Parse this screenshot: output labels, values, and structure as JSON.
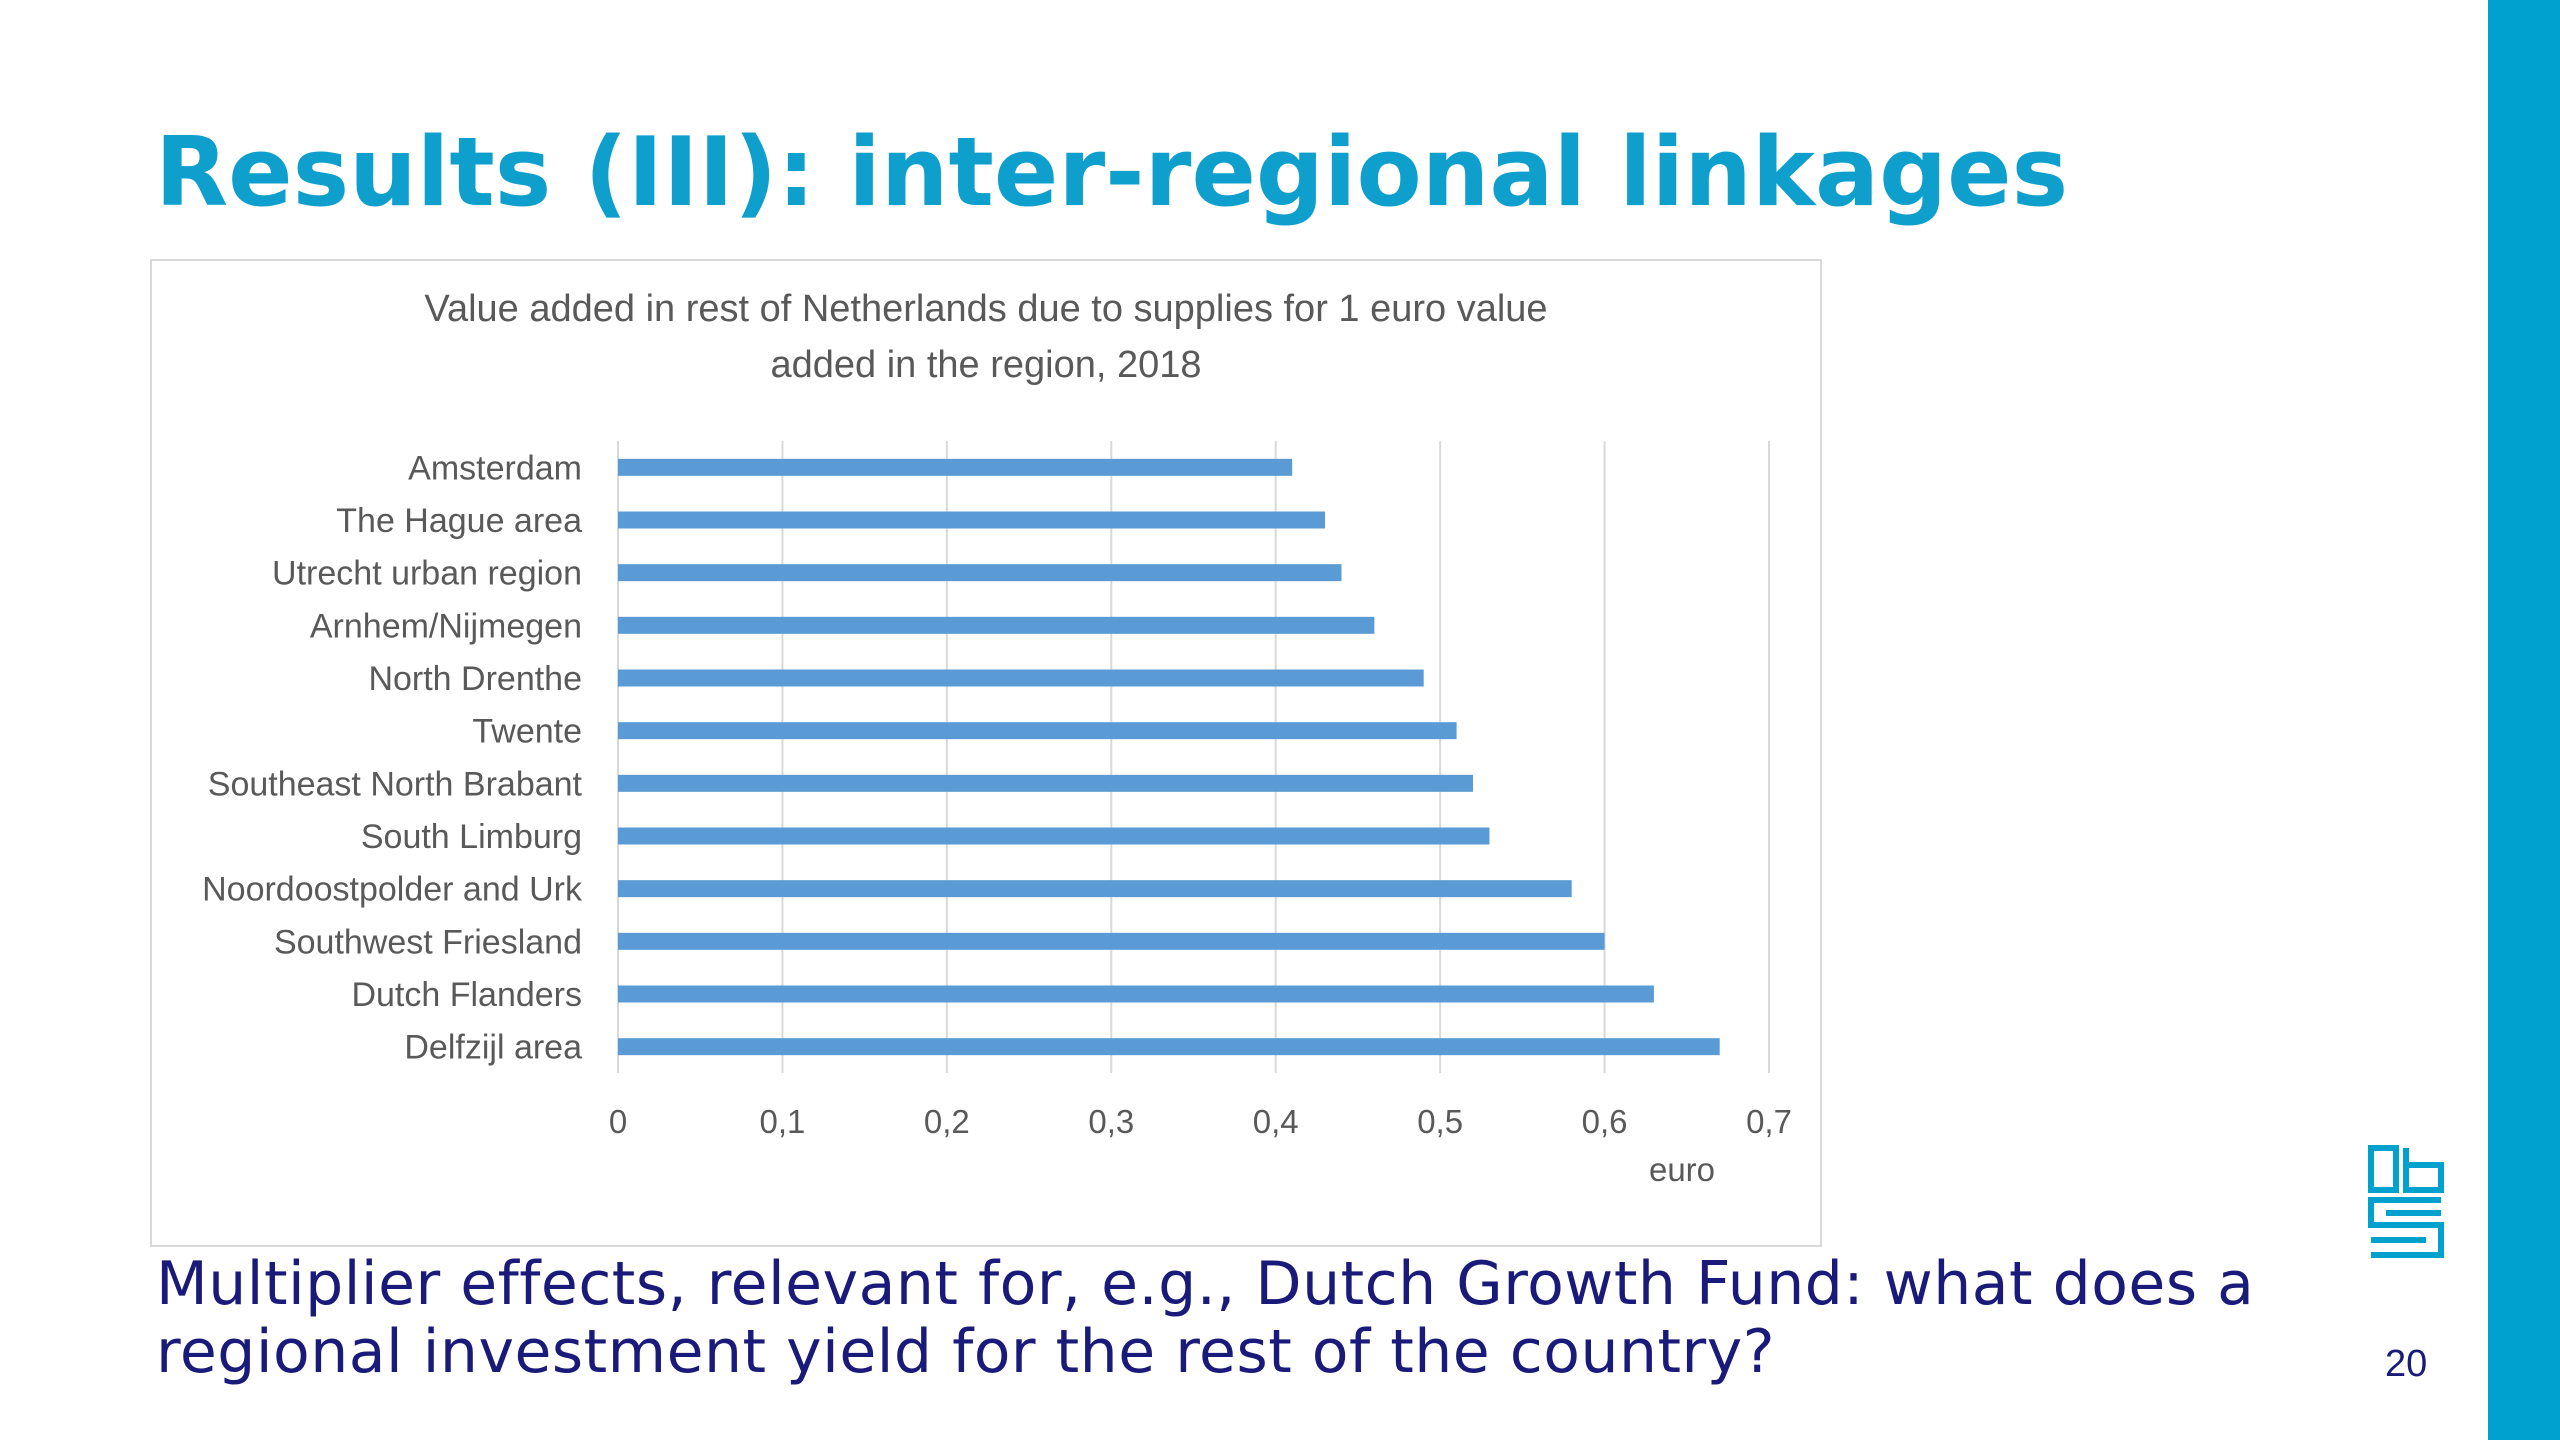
{
  "slide": {
    "title": "Results (III): inter-regional linkages",
    "caption": "Multiplier effects, relevant for, e.g., Dutch Growth Fund: what does a regional investment yield for the rest of the country?",
    "page_number": "20",
    "accent_color": "#0e9fcd",
    "side_bar_color": "#00a1cd",
    "caption_color": "#1a1a7a",
    "logo_icon": "cbs-logo-icon"
  },
  "chart_data": {
    "type": "bar",
    "orientation": "horizontal",
    "title_lines": [
      "Value added in rest of Netherlands due to supplies for 1 euro value",
      "added in the region, 2018"
    ],
    "categories": [
      "Amsterdam",
      "The Hague area",
      "Utrecht urban region",
      "Arnhem/Nijmegen",
      "North Drenthe",
      "Twente",
      "Southeast North Brabant",
      "South Limburg",
      "Noordoostpolder and Urk",
      "Southwest Friesland",
      "Dutch Flanders",
      "Delfzijl area"
    ],
    "values": [
      0.41,
      0.43,
      0.44,
      0.46,
      0.49,
      0.51,
      0.52,
      0.53,
      0.58,
      0.6,
      0.63,
      0.67
    ],
    "xlabel": "euro",
    "xlim": [
      0,
      0.7
    ],
    "x_ticks": [
      "0",
      "0,1",
      "0,2",
      "0,3",
      "0,4",
      "0,5",
      "0,6",
      "0,7"
    ],
    "bar_color": "#5b9bd5",
    "grid": true
  }
}
